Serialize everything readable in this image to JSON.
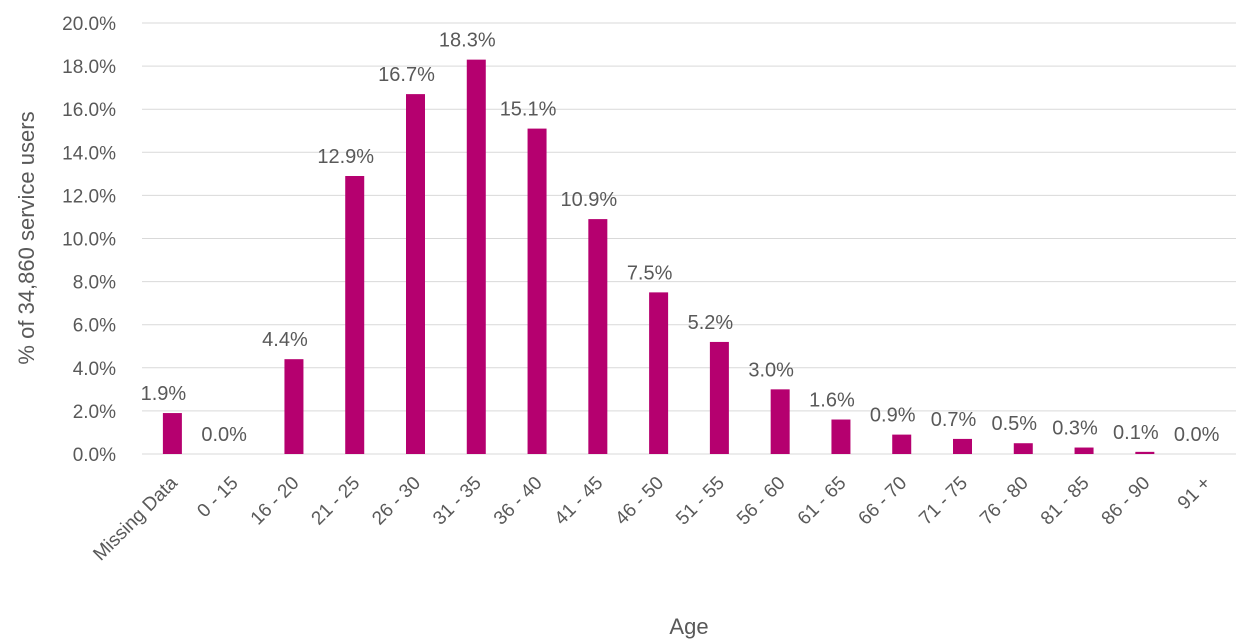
{
  "chart_data": {
    "type": "bar",
    "title": "",
    "xlabel": "Age",
    "ylabel": "% of 34,860 service users",
    "categories": [
      "Missing Data",
      "0 - 15",
      "16 - 20",
      "21 - 25",
      "26 - 30",
      "31 - 35",
      "36 - 40",
      "41 - 45",
      "46 - 50",
      "51 - 55",
      "56 - 60",
      "61 - 65",
      "66 - 70",
      "71 - 75",
      "76 - 80",
      "81 - 85",
      "86 - 90",
      "91 +"
    ],
    "values": [
      1.9,
      0.0,
      4.4,
      12.9,
      16.7,
      18.3,
      15.1,
      10.9,
      7.5,
      5.2,
      3.0,
      1.6,
      0.9,
      0.7,
      0.5,
      0.3,
      0.1,
      0.0
    ],
    "data_labels": [
      "1.9%",
      "0.0%",
      "4.4%",
      "12.9%",
      "16.7%",
      "18.3%",
      "15.1%",
      "10.9%",
      "7.5%",
      "5.2%",
      "3.0%",
      "1.6%",
      "0.9%",
      "0.7%",
      "0.5%",
      "0.3%",
      "0.1%",
      "0.0%"
    ],
    "ylim": [
      0,
      20
    ],
    "yticks": [
      "0.0%",
      "2.0%",
      "4.0%",
      "6.0%",
      "8.0%",
      "10.0%",
      "12.0%",
      "14.0%",
      "16.0%",
      "18.0%",
      "20.0%"
    ],
    "grid": true,
    "legend": "none",
    "bar_color": "#b5006f"
  }
}
